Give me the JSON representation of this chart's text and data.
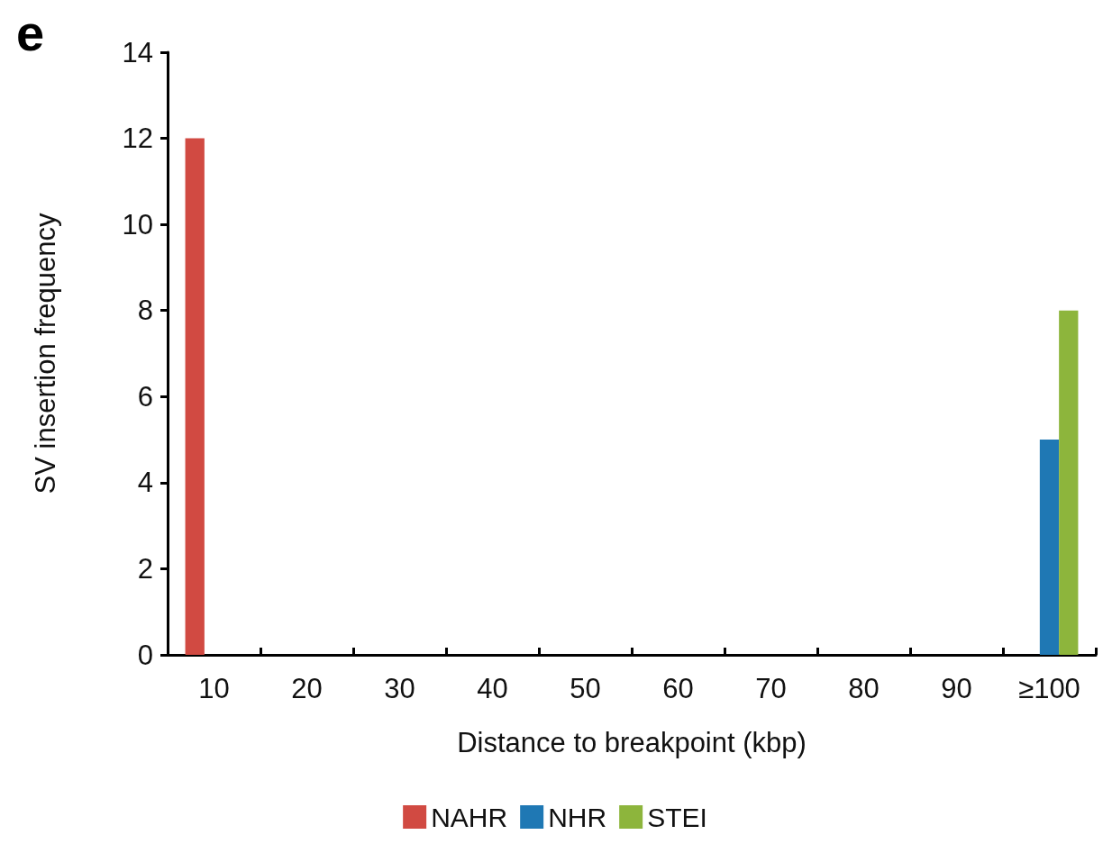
{
  "chart_data": {
    "type": "bar",
    "xlabel": "Distance to breakpoint (kbp)",
    "ylabel": "SV insertion frequency",
    "annotations": [
      "e"
    ],
    "categories": [
      "10",
      "20",
      "30",
      "40",
      "50",
      "60",
      "70",
      "80",
      "90",
      "≥100"
    ],
    "series": [
      {
        "name": "NAHR",
        "color": "#d14a42",
        "values": [
          12,
          0,
          0,
          0,
          0,
          0,
          0,
          0,
          0,
          0
        ]
      },
      {
        "name": "NHR",
        "color": "#1f78b4",
        "values": [
          0,
          0,
          0,
          0,
          0,
          0,
          0,
          0,
          0,
          5
        ]
      },
      {
        "name": "STEI",
        "color": "#8db53c",
        "values": [
          0,
          0,
          0,
          0,
          0,
          0,
          0,
          0,
          0,
          8
        ]
      }
    ],
    "ylim": [
      0,
      14
    ],
    "yticks": [
      0,
      2,
      4,
      6,
      8,
      10,
      12,
      14
    ],
    "grid": false,
    "legend": "bottom"
  }
}
